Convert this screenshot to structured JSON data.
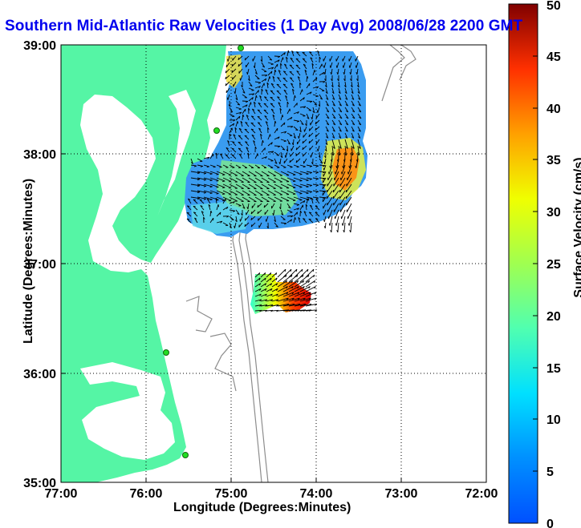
{
  "title": "Southern Mid-Atlantic Raw Velocities (1 Day Avg) 2008/06/28 2200 GMT",
  "colorbar": {
    "label": "Surface Velocity (cm/s)",
    "range": [
      0,
      50
    ],
    "ticks": [
      "0",
      "5",
      "10",
      "15",
      "20",
      "25",
      "30",
      "35",
      "40",
      "45",
      "50"
    ],
    "colormap": "jet"
  },
  "map": {
    "xlabel": "Longitude (Degrees:Minutes)",
    "ylabel": "Latitude (Degrees:Minutes)",
    "lon_range": [
      -77,
      -72
    ],
    "lat_range": [
      35,
      39
    ],
    "x_ticks": [
      "77:00",
      "76:00",
      "75:00",
      "74:00",
      "73:00",
      "72:00"
    ],
    "y_ticks": [
      "35:00",
      "36:00",
      "37:00",
      "38:00",
      "39:00"
    ],
    "grid": "dotted",
    "colors": {
      "land": "#55f5a5",
      "ocean": "#ffffff",
      "bathymetry": "#8c8c8c",
      "grid": "#000000",
      "coastline": "#000000",
      "station": "#22dd22"
    },
    "radar_stations": [
      {
        "lon": -75.1,
        "lat": 38.98
      },
      {
        "lon": -75.15,
        "lat": 38.23
      },
      {
        "lon": -75.73,
        "lat": 36.18
      },
      {
        "lon": -75.5,
        "lat": 35.25
      }
    ]
  }
}
